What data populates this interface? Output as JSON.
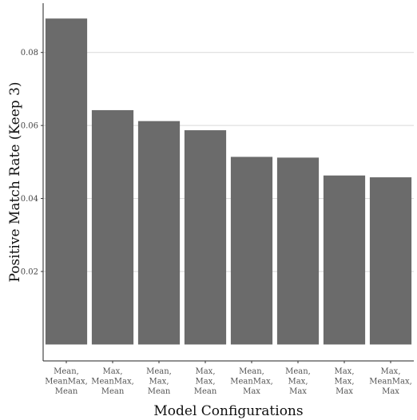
{
  "chart_data": {
    "type": "bar",
    "title": "",
    "xlabel": "Model Configurations",
    "ylabel": "Positive Match Rate (Keep 3)",
    "categories": [
      [
        "Mean,",
        "MeanMax,",
        "Mean"
      ],
      [
        "Max,",
        "MeanMax,",
        "Mean"
      ],
      [
        "Mean,",
        "Max,",
        "Mean"
      ],
      [
        "Max,",
        "Max,",
        "Mean"
      ],
      [
        "Mean,",
        "MeanMax,",
        "Max"
      ],
      [
        "Mean,",
        "Max,",
        "Max"
      ],
      [
        "Max,",
        "Max,",
        "Max"
      ],
      [
        "Max,",
        "MeanMax,",
        "Max"
      ]
    ],
    "values": [
      0.0893,
      0.0642,
      0.0612,
      0.0587,
      0.0514,
      0.0512,
      0.0463,
      0.0458
    ],
    "ylim": [
      -0.0045,
      0.0935
    ],
    "yticks": [
      0.02,
      0.04,
      0.06,
      0.08
    ],
    "ytick_labels": [
      "0.02",
      "0.04",
      "0.06",
      "0.08"
    ],
    "bar_color": "#6b6b6b",
    "grid": true,
    "legend": "none"
  }
}
